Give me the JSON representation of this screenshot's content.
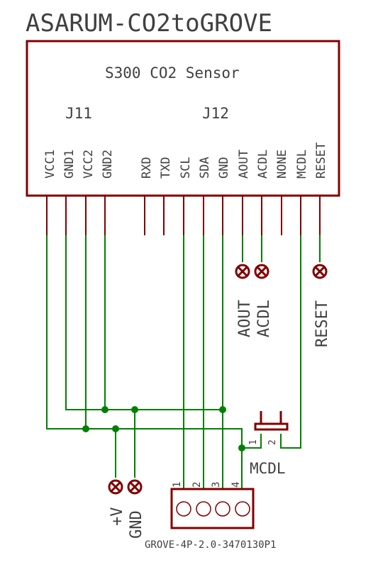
{
  "title": "ASARUM-CO2toGROVE",
  "sensor": {
    "name": "S300 CO2 Sensor",
    "header_left": "J11",
    "header_right": "J12",
    "pins": [
      "VCC1",
      "GND1",
      "VCC2",
      "GND2",
      "RXD",
      "TXD",
      "SCL",
      "SDA",
      "GND",
      "AOUT",
      "ACDL",
      "NONE",
      "MCDL",
      "RESET"
    ]
  },
  "test_points": {
    "aout": "AOUT",
    "acdl": "ACDL",
    "reset": "RESET",
    "vplus": "+V",
    "gnd": "GND"
  },
  "jumper": {
    "label": "MCDL",
    "pin1": "1",
    "pin2": "2"
  },
  "connector": {
    "name": "GROVE-4P-2.0-3470130P1",
    "pin_numbers": [
      "1",
      "2",
      "3",
      "4"
    ]
  },
  "colors": {
    "outline": "#800000",
    "wire": "#008000",
    "junction": "#008000",
    "text": "#404040"
  }
}
